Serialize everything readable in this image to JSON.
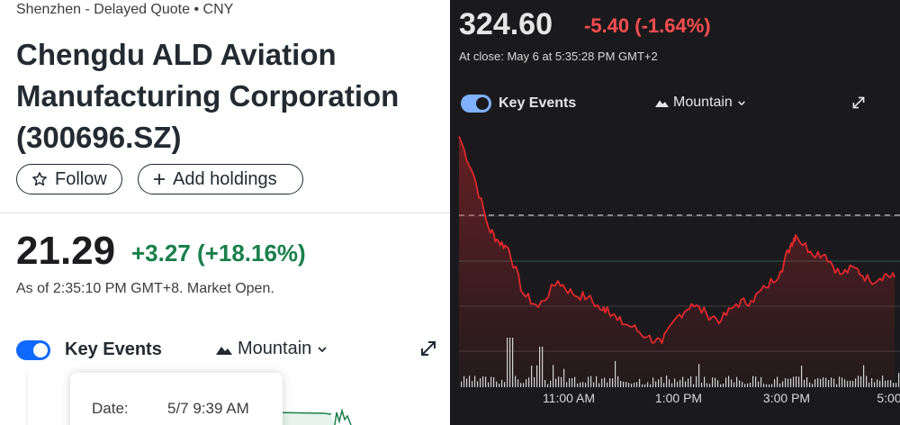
{
  "left": {
    "exchange_line": "Shenzhen - Delayed Quote • CNY",
    "company_name": "Chengdu ALD Aviation Manufacturing Corporation (300696.SZ)",
    "follow_label": "Follow",
    "add_holdings_label": "Add holdings",
    "price": "21.29",
    "change": "+3.27 (+18.16%)",
    "as_of": "As of 2:35:10 PM GMT+8. Market Open.",
    "key_events_label": "Key Events",
    "chart_type_label": "Mountain",
    "tooltip": {
      "date_label": "Date:",
      "date_value": "5/7 9:39 AM"
    },
    "colors": {
      "up": "#1a7f4b",
      "toggle": "#0f69ff"
    }
  },
  "right": {
    "price": "324.60",
    "change": "-5.40 (-1.64%)",
    "at_close": "At close: May 6 at 5:35:28 PM GMT+2",
    "key_events_label": "Key Events",
    "chart_type_label": "Mountain",
    "colors": {
      "down": "#ff4d4f",
      "background": "#1a1a1c"
    }
  },
  "icons": {
    "follow": "star-icon",
    "add": "plus-icon",
    "chart_type": "mountain-icon",
    "dropdown": "chevron-down-icon",
    "expand": "expand-icon"
  },
  "chart_data": {
    "type": "area",
    "x_tick_labels": [
      "11:00 AM",
      "1:00 PM",
      "3:00 PM",
      "5:00"
    ],
    "previous_close_reference": 330.0,
    "x": [
      0.0,
      0.3,
      0.6,
      0.8,
      1.0,
      1.3,
      1.6,
      2.0,
      2.3,
      2.6,
      2.9,
      3.0,
      3.2,
      3.5,
      3.8,
      4.1,
      4.4,
      4.7,
      5.0,
      5.3,
      5.6,
      5.9,
      6.2,
      6.5,
      6.7,
      6.8,
      7.1,
      7.4,
      7.7,
      8.0,
      8.3,
      8.6,
      8.8
    ],
    "values": [
      342.0,
      336.0,
      328.0,
      326.0,
      325.0,
      318.0,
      316.0,
      320.0,
      318.0,
      317.5,
      315.5,
      316.0,
      314.0,
      313.0,
      311.5,
      310.5,
      314.5,
      316.5,
      315.0,
      314.0,
      316.5,
      317.0,
      319.0,
      321.5,
      325.5,
      327.0,
      324.5,
      324.0,
      321.0,
      322.0,
      320.0,
      321.0,
      320.5
    ]
  }
}
